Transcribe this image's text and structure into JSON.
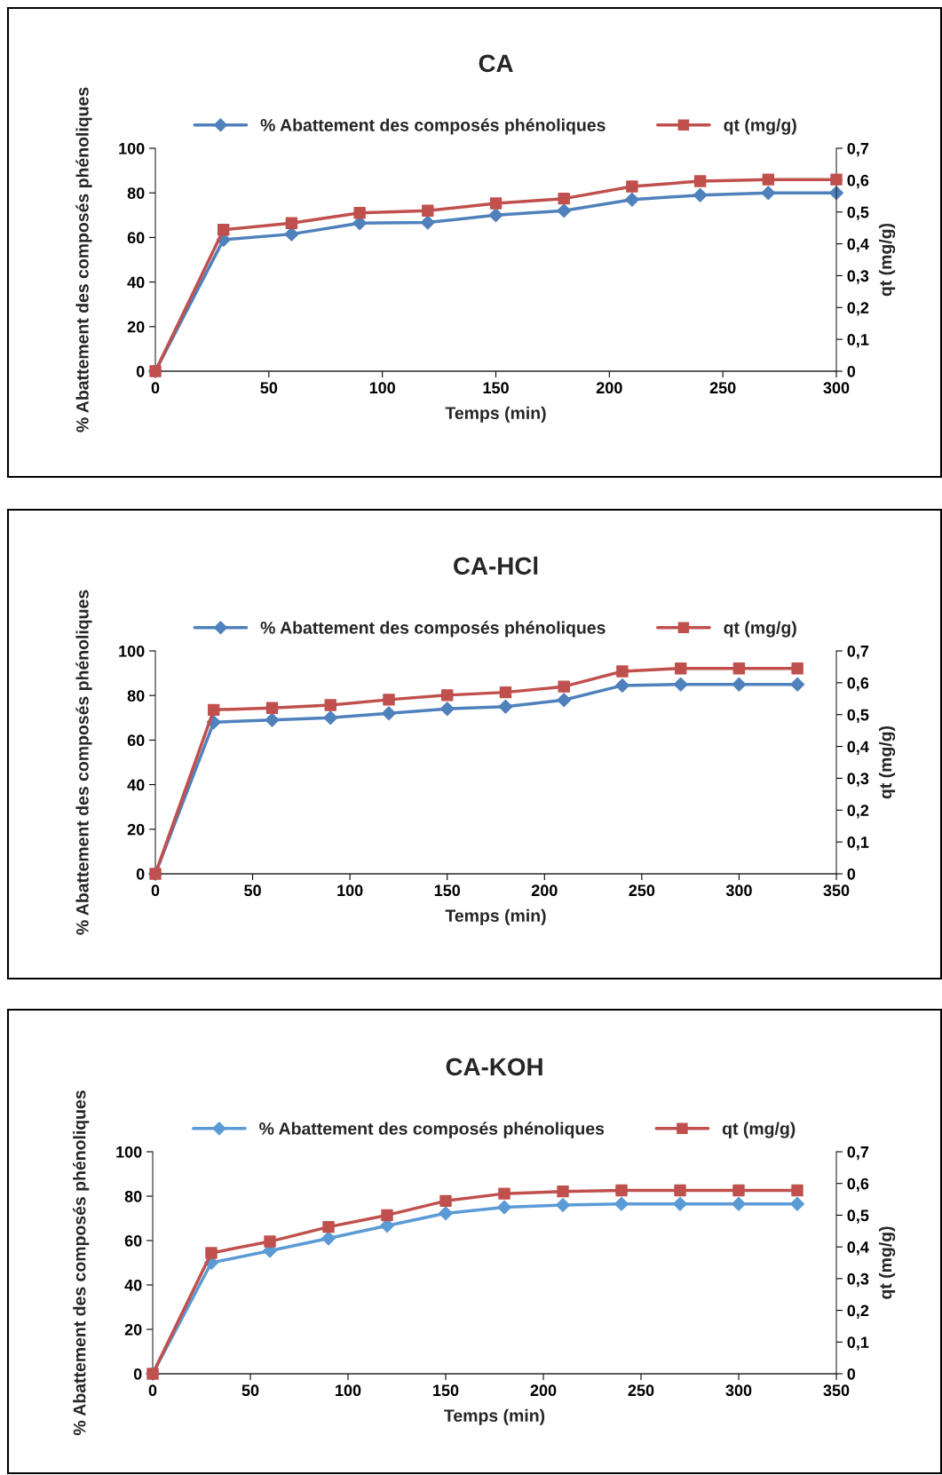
{
  "chart_data": [
    {
      "type": "line",
      "title": "CA",
      "xlabel": "Temps (min)",
      "ylabel": "% Abattement des composés phénoliques",
      "y2label": "qt (mg/g)",
      "legend": "top",
      "grid": false,
      "x": [
        0,
        30,
        60,
        90,
        120,
        150,
        180,
        210,
        240,
        270,
        300
      ],
      "xlim": [
        0,
        300
      ],
      "xticks": [
        0,
        50,
        100,
        150,
        200,
        250,
        300
      ],
      "ylim": [
        0,
        100
      ],
      "yticks": [
        0,
        20,
        40,
        60,
        80,
        100
      ],
      "y2lim": [
        0,
        0.7
      ],
      "y2ticks": [
        0,
        {
          "value": 0.1,
          "label": "0,1"
        },
        {
          "value": 0.2,
          "label": "0,2"
        },
        {
          "value": 0.3,
          "label": "0,3"
        },
        {
          "value": 0.4,
          "label": "0,4"
        },
        {
          "value": 0.5,
          "label": "0,5"
        },
        {
          "value": 0.6,
          "label": "0,6"
        },
        {
          "value": 0.7,
          "label": "0,7"
        }
      ],
      "series": [
        {
          "name": "% Abattement des composés phénoliques",
          "color": "#4f81bd",
          "marker": "diamond",
          "values": [
            0,
            59,
            61.5,
            66.4,
            66.7,
            70,
            72,
            77,
            79,
            80,
            80
          ]
        },
        {
          "name": "qt (mg/g)",
          "color": "#c0504d",
          "marker": "square",
          "axis": "y2",
          "values": [
            0,
            0.444,
            0.465,
            0.497,
            0.504,
            0.527,
            0.542,
            0.58,
            0.597,
            0.602,
            0.602
          ]
        }
      ]
    },
    {
      "type": "line",
      "title": "CA-HCl",
      "xlabel": "Temps (min)",
      "ylabel": "% Abattement des composés phénoliques",
      "y2label": "qt (mg/g)",
      "legend": "top",
      "grid": false,
      "x": [
        0,
        30,
        60,
        90,
        120,
        150,
        180,
        210,
        240,
        270,
        300,
        330
      ],
      "xlim": [
        0,
        350
      ],
      "xticks": [
        0,
        50,
        100,
        150,
        200,
        250,
        300,
        350
      ],
      "ylim": [
        0,
        100
      ],
      "yticks": [
        0,
        20,
        40,
        60,
        80,
        100
      ],
      "y2lim": [
        0,
        0.7
      ],
      "y2ticks": [
        0,
        {
          "value": 0.1,
          "label": "0,1"
        },
        {
          "value": 0.2,
          "label": "0,2"
        },
        {
          "value": 0.3,
          "label": "0,3"
        },
        {
          "value": 0.4,
          "label": "0,4"
        },
        {
          "value": 0.5,
          "label": "0,5"
        },
        {
          "value": 0.6,
          "label": "0,6"
        },
        {
          "value": 0.7,
          "label": "0,7"
        }
      ],
      "series": [
        {
          "name": "% Abattement des composés phénoliques",
          "color": "#4f81bd",
          "marker": "diamond",
          "values": [
            0,
            68,
            69,
            70,
            72,
            74,
            75,
            78,
            84.5,
            85,
            85,
            85
          ]
        },
        {
          "name": "qt (mg/g)",
          "color": "#c0504d",
          "marker": "square",
          "axis": "y2",
          "values": [
            0,
            0.515,
            0.521,
            0.53,
            0.547,
            0.561,
            0.57,
            0.588,
            0.636,
            0.645,
            0.645,
            0.645
          ]
        }
      ]
    },
    {
      "type": "line",
      "title": "CA-KOH",
      "xlabel": "Temps (min)",
      "ylabel": "% Abattement des composés phénoliques",
      "y2label": "qt (mg/g)",
      "legend": "top",
      "grid": false,
      "x": [
        0,
        30,
        60,
        90,
        120,
        150,
        180,
        210,
        240,
        270,
        300,
        330
      ],
      "xlim": [
        0,
        350
      ],
      "xticks": [
        0,
        50,
        100,
        150,
        200,
        250,
        300,
        350
      ],
      "ylim": [
        0,
        100
      ],
      "yticks": [
        0,
        20,
        40,
        60,
        80,
        100
      ],
      "y2lim": [
        0,
        0.7
      ],
      "y2ticks": [
        0,
        {
          "value": 0.1,
          "label": "0,1"
        },
        {
          "value": 0.2,
          "label": "0,2"
        },
        {
          "value": 0.3,
          "label": "0,3"
        },
        {
          "value": 0.4,
          "label": "0,4"
        },
        {
          "value": 0.5,
          "label": "0,5"
        },
        {
          "value": 0.6,
          "label": "0,6"
        },
        {
          "value": 0.7,
          "label": "0,7"
        }
      ],
      "series": [
        {
          "name": "% Abattement des composés phénoliques",
          "color": "#5b9bd5",
          "marker": "diamond",
          "values": [
            0,
            50,
            55.4,
            61,
            66.7,
            72.3,
            75,
            76,
            76.5,
            76.5,
            76.5,
            76.5
          ]
        },
        {
          "name": "qt (mg/g)",
          "color": "#c0504d",
          "marker": "square",
          "axis": "y2",
          "values": [
            0,
            0.381,
            0.417,
            0.463,
            0.5,
            0.545,
            0.568,
            0.575,
            0.578,
            0.578,
            0.578,
            0.578
          ]
        }
      ]
    }
  ]
}
